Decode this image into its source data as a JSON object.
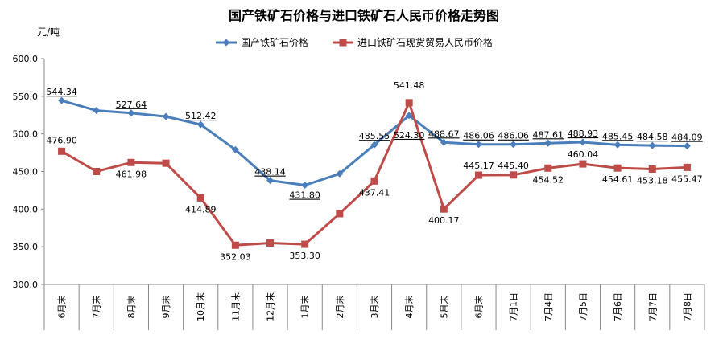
{
  "chart_data": {
    "type": "line",
    "title": "国产铁矿石价格与进口铁矿石人民币价格走势图",
    "unit_label": "元/吨",
    "ylim": [
      300,
      600
    ],
    "yticks": [
      "300.0",
      "350.0",
      "400.0",
      "450.0",
      "500.0",
      "550.0",
      "600.0"
    ],
    "categories": [
      "6月末",
      "7月末",
      "8月末",
      "9月末",
      "10月末",
      "11月末",
      "12月末",
      "1月末",
      "2月末",
      "3月末",
      "4月末",
      "5月末",
      "6月末",
      "7月1日",
      "7月4日",
      "7月5日",
      "7月6日",
      "7月7日",
      "7月8日"
    ],
    "grid": false,
    "legend_position": "top",
    "series": [
      {
        "name": "国产铁矿石价格",
        "color": "#4a7ebb",
        "marker": "diamond",
        "values": [
          544.34,
          531,
          527.64,
          523,
          512.42,
          479,
          438.14,
          431.8,
          447,
          485.55,
          524.3,
          488.67,
          486.06,
          486.06,
          487.61,
          488.93,
          485.45,
          484.58,
          484.09
        ],
        "labels": [
          "544.34",
          "",
          "527.64",
          "",
          "512.42",
          "",
          "438.14",
          "431.80",
          "",
          "485.55",
          "524.30",
          "488.67",
          "486.06",
          "486.06",
          "487.61",
          "488.93",
          "485.45",
          "484.58",
          "484.09"
        ]
      },
      {
        "name": "进口铁矿石现货贸易人民币价格",
        "color": "#be4b48",
        "marker": "square",
        "values": [
          476.9,
          450,
          461.98,
          461,
          414.89,
          352.03,
          355,
          353.3,
          394,
          437.41,
          541.48,
          400.17,
          445.17,
          445.4,
          454.52,
          460.04,
          454.61,
          453.18,
          455.47
        ],
        "labels": [
          "476.90",
          "",
          "461.98",
          "",
          "414.89",
          "352.03",
          "",
          "353.30",
          "",
          "437.41",
          "541.48",
          "400.17",
          "445.17",
          "445.40",
          "454.52",
          "460.04",
          "454.61",
          "453.18",
          "455.47"
        ]
      }
    ]
  }
}
